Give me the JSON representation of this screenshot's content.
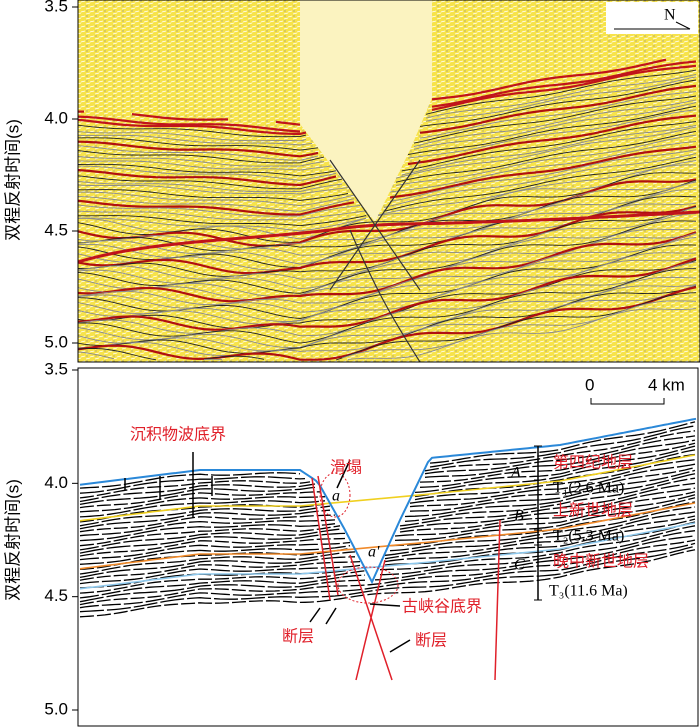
{
  "panels": [
    {
      "ylabel": "双程反射时间(s)",
      "ylim": [
        3.5,
        5.0
      ],
      "yticks": [
        3.5,
        {
          "value": 4,
          "label": "4.0"
        },
        4.5,
        {
          "value": 5,
          "label": "5.0"
        }
      ],
      "north_label": "N"
    },
    {
      "ylabel": "双程反射时间(s)",
      "ylim": [
        3.5,
        5.0
      ],
      "yticks": [
        3.5,
        {
          "value": 4,
          "label": "4.0"
        },
        4.5,
        {
          "value": 5,
          "label": "5.0"
        }
      ],
      "scale_bar": {
        "start": "0",
        "end": "4 km"
      },
      "annotations": {
        "sediment_wave_base": "沉积物波底界",
        "slump": "滑塌",
        "point_a": "a",
        "point_a_prime": "a'",
        "fault_left": "断层",
        "fault_right": "断层",
        "paleocanyon_base": "古峡谷底界",
        "unit_a": "A",
        "unit_b": "B",
        "unit_c": "C",
        "quaternary": "第四纪地层",
        "pliocene": "上新世地层",
        "late_miocene": "晚中新世地层",
        "t1": "T₁(2.6 Ma)",
        "t2": "T₂(5.3 Ma)",
        "t3": "T₃(11.6 Ma)"
      }
    }
  ]
}
